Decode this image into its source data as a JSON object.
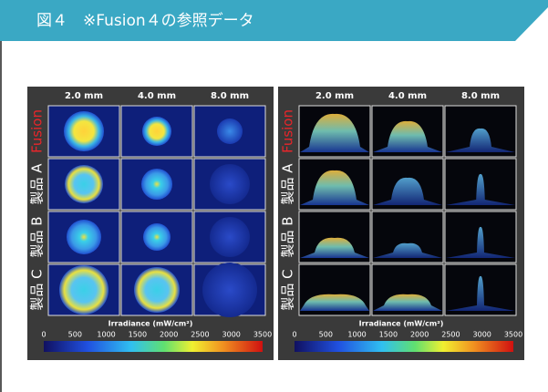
{
  "header": {
    "title": "図４　※Fusion４の参照データ"
  },
  "panels": [
    {
      "columns": [
        "2.0 mm",
        "4.0 mm",
        "8.0 mm"
      ],
      "rows": [
        "Fusion",
        "製品 A",
        "製品 B",
        "製品 C"
      ],
      "colorbar": {
        "title": "Irradiance (mW/cm²)",
        "ticks": [
          0,
          500,
          1000,
          1500,
          2000,
          2500,
          3000,
          3500
        ]
      }
    },
    {
      "columns": [
        "2.0 mm",
        "4.0 mm",
        "8.0 mm"
      ],
      "rows": [
        "Fusion",
        "製品 A",
        "製品 B",
        "製品 C"
      ],
      "colorbar": {
        "title": "Irradiance (mW/cm²)",
        "ticks": [
          0,
          500,
          1000,
          1500,
          2000,
          2500,
          3000,
          3500
        ]
      }
    }
  ]
}
